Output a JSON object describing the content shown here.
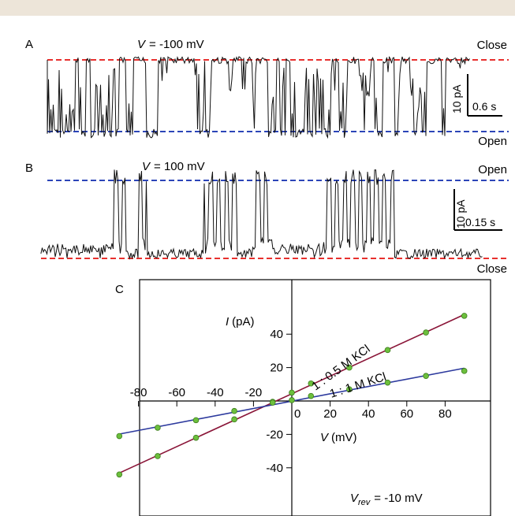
{
  "chart_data": [
    {
      "type": "line",
      "panel": "A",
      "annotation_voltage": "= -100 mV",
      "annotation_voltage_symbol": "V",
      "level_labels": {
        "upper": "Close",
        "lower": "Open"
      },
      "scale_bar": {
        "current": "10 pA",
        "time": "0.6 s"
      },
      "reference_lines": [
        {
          "level": "Close",
          "color": "#e8302e"
        },
        {
          "level": "Open",
          "color": "#2c45b8"
        }
      ]
    },
    {
      "type": "line",
      "panel": "B",
      "annotation_voltage": "= 100 mV",
      "annotation_voltage_symbol": "V",
      "level_labels": {
        "upper": "Open",
        "lower": "Close"
      },
      "scale_bar": {
        "current": "10 pA",
        "time": "0.15 s"
      },
      "reference_lines": [
        {
          "level": "Open",
          "color": "#2c45b8"
        },
        {
          "level": "Close",
          "color": "#e8302e"
        }
      ]
    },
    {
      "type": "scatter",
      "panel": "C",
      "xlabel_symbol": "V",
      "xlabel_unit": "(mV)",
      "ylabel_symbol": "I",
      "ylabel_unit": "(pA)",
      "xlim": [
        -100,
        100
      ],
      "ylim": [
        -52,
        57
      ],
      "x_ticks": [
        -80,
        -60,
        -40,
        -20,
        0,
        20,
        40,
        60,
        80
      ],
      "x_tick_labels": [
        "-80",
        "-60",
        "-40",
        "-20",
        "0",
        "20",
        "40",
        "60",
        "80"
      ],
      "y_ticks": [
        -40,
        -20,
        20,
        40
      ],
      "y_tick_labels": [
        "-40",
        "-20",
        "20",
        "40"
      ],
      "annotation": {
        "symbol": "V",
        "subscript": "rev",
        "text": "= -10 mV"
      },
      "series": [
        {
          "name": "1 : 0.5 M KCl",
          "color": "#8a1538",
          "points": [
            {
              "x": -90,
              "y": -44
            },
            {
              "x": -70,
              "y": -33
            },
            {
              "x": -50,
              "y": -22
            },
            {
              "x": -30,
              "y": -11
            },
            {
              "x": -10,
              "y": -0.5
            },
            {
              "x": 0,
              "y": 5
            },
            {
              "x": 10,
              "y": 10.5
            },
            {
              "x": 30,
              "y": 20
            },
            {
              "x": 50,
              "y": 30.5
            },
            {
              "x": 70,
              "y": 41
            },
            {
              "x": 90,
              "y": 51
            }
          ]
        },
        {
          "name": "1 : 1 M KCl",
          "color": "#2d3a9e",
          "points": [
            {
              "x": -90,
              "y": -21
            },
            {
              "x": -70,
              "y": -16
            },
            {
              "x": -50,
              "y": -11.5
            },
            {
              "x": -30,
              "y": -6
            },
            {
              "x": -10,
              "y": -1
            },
            {
              "x": 0,
              "y": 0.5
            },
            {
              "x": 10,
              "y": 3
            },
            {
              "x": 30,
              "y": 7
            },
            {
              "x": 50,
              "y": 11
            },
            {
              "x": 70,
              "y": 15
            },
            {
              "x": 90,
              "y": 18
            }
          ]
        }
      ]
    }
  ]
}
